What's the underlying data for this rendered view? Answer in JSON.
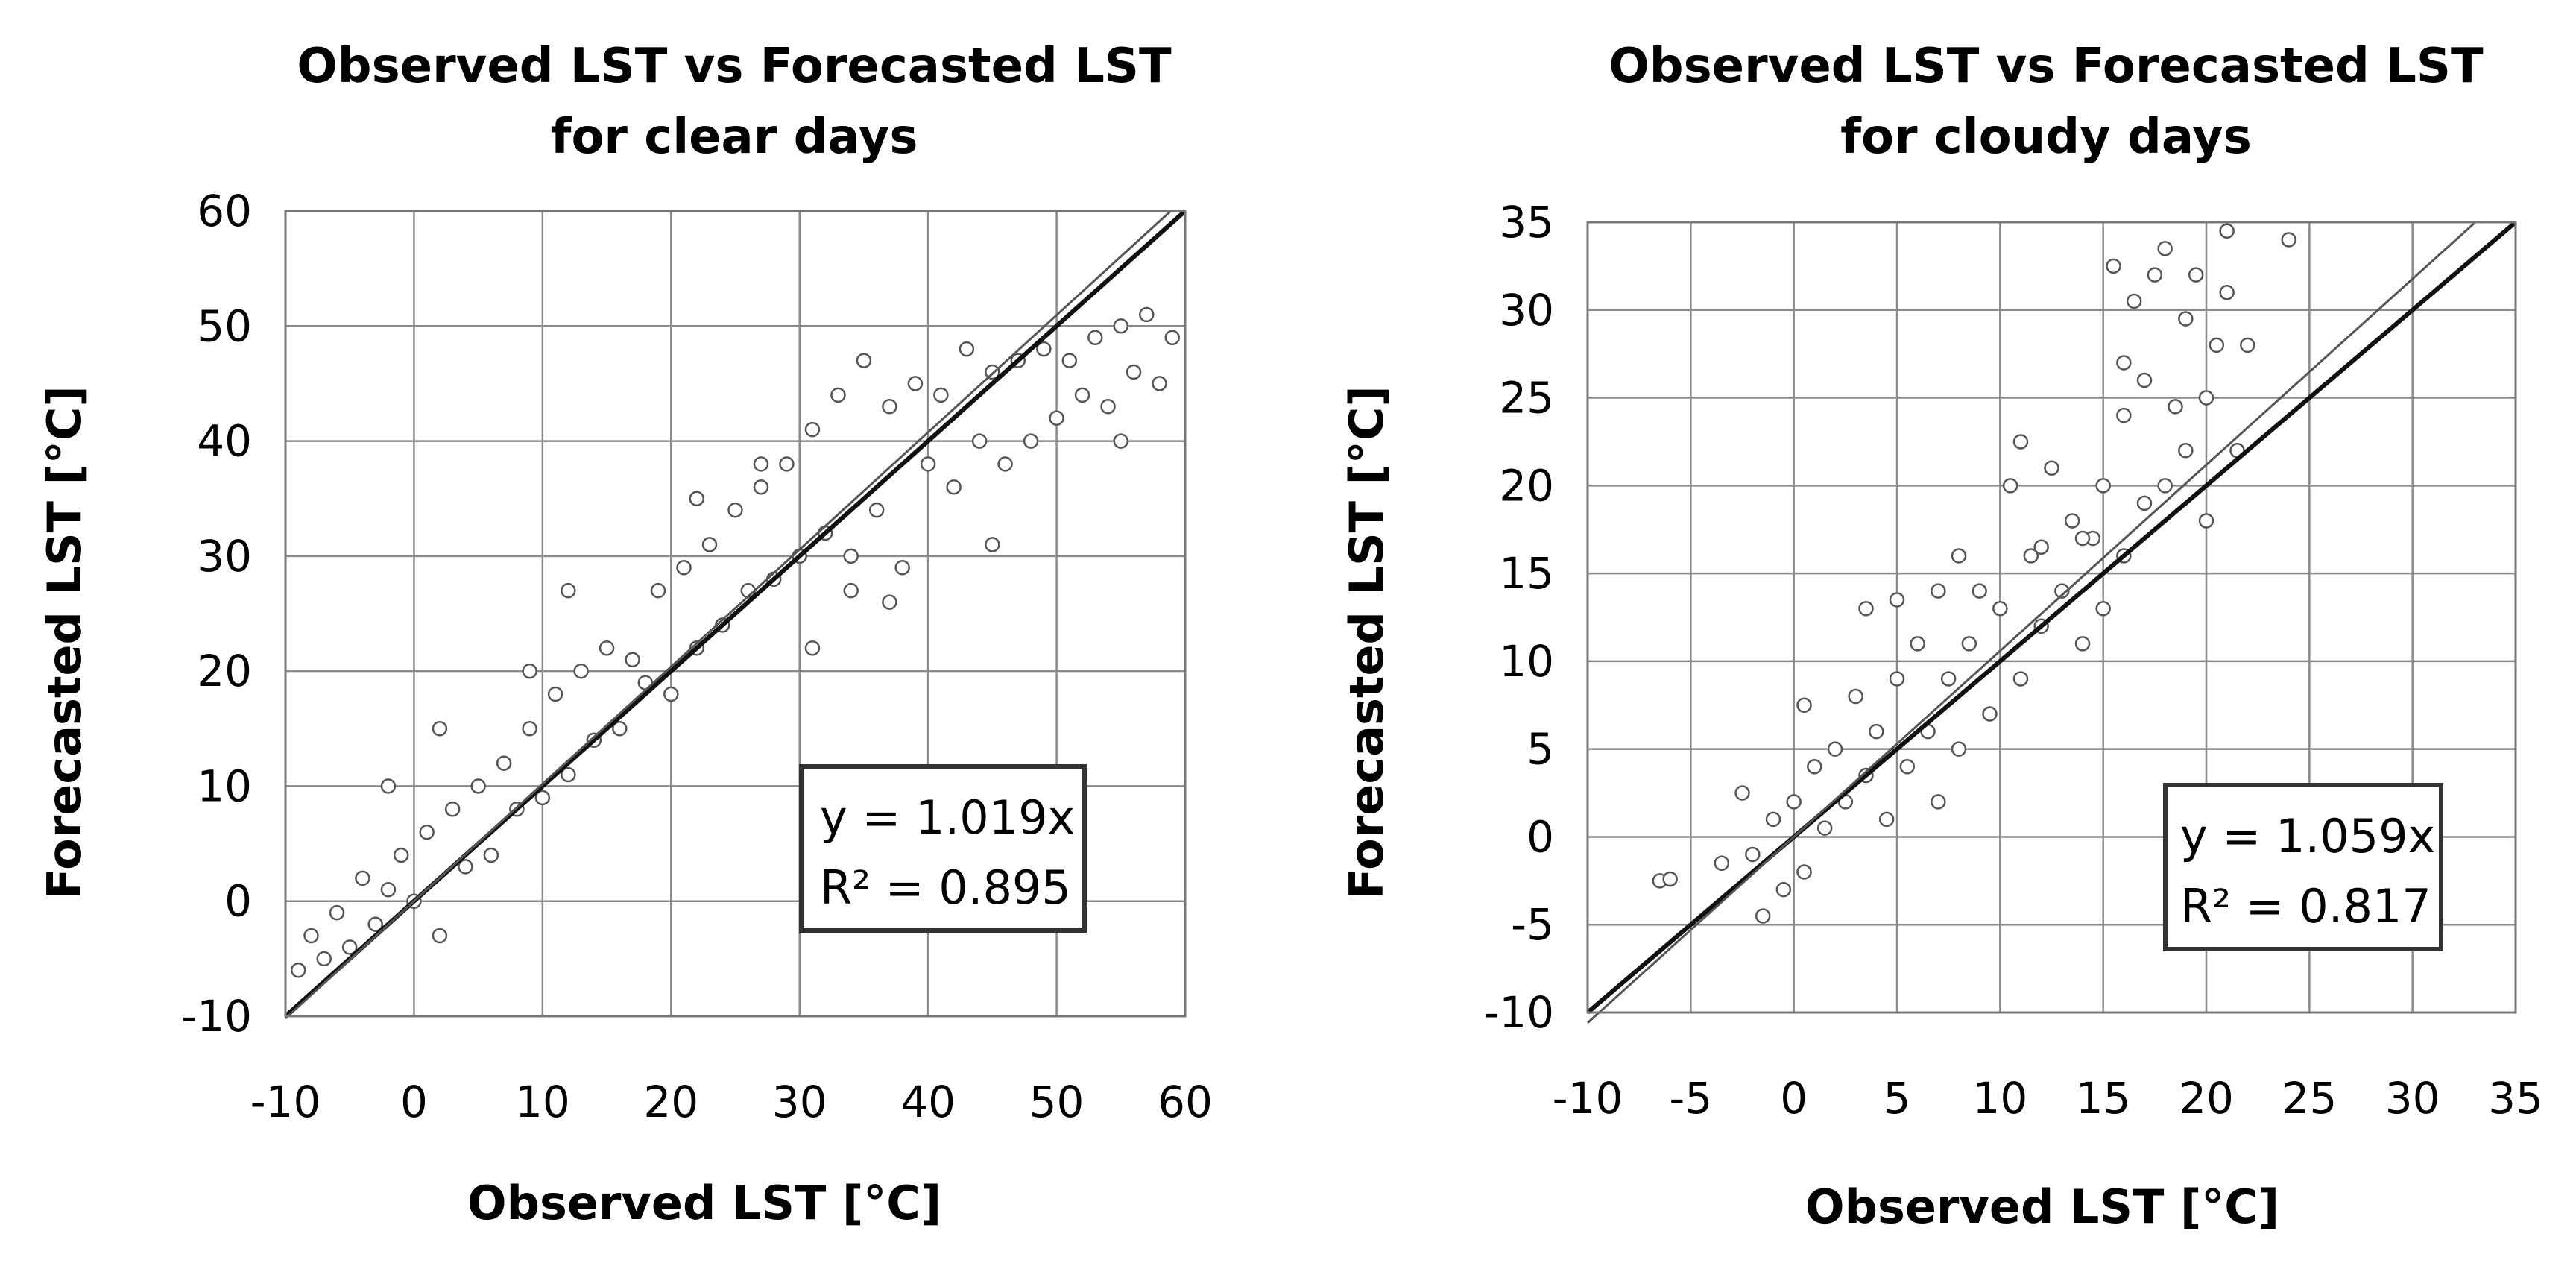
{
  "chart_data": [
    {
      "type": "scatter",
      "title_lines": [
        "Observed LST vs Forecasted LST",
        "for clear days"
      ],
      "xlabel": "Observed LST [°C]",
      "ylabel": "Forecasted LST [°C]",
      "xlim": [
        -10,
        60
      ],
      "ylim": [
        -10,
        60
      ],
      "xticks": [
        -10,
        0,
        10,
        20,
        30,
        40,
        50,
        60
      ],
      "yticks": [
        -10,
        0,
        10,
        20,
        30,
        40,
        50,
        60
      ],
      "grid": true,
      "trend": {
        "slope": 1.019,
        "equation": "y = 1.019x",
        "r2": "R² = 0.895"
      },
      "identity_line": true,
      "legend_position": "bottom-right",
      "scatter_spec": {
        "description": "dense cloud of observed vs forecasted points along y = x",
        "points": [
          [
            -9,
            -6
          ],
          [
            -8,
            -3
          ],
          [
            -7,
            -5
          ],
          [
            -6,
            -1
          ],
          [
            -5,
            -4
          ],
          [
            -4,
            2
          ],
          [
            -3,
            -2
          ],
          [
            -2,
            1
          ],
          [
            -1,
            4
          ],
          [
            0,
            0
          ],
          [
            1,
            6
          ],
          [
            2,
            -3
          ],
          [
            3,
            8
          ],
          [
            4,
            3
          ],
          [
            5,
            10
          ],
          [
            6,
            4
          ],
          [
            7,
            12
          ],
          [
            8,
            8
          ],
          [
            9,
            15
          ],
          [
            10,
            9
          ],
          [
            11,
            18
          ],
          [
            12,
            11
          ],
          [
            13,
            20
          ],
          [
            14,
            14
          ],
          [
            15,
            22
          ],
          [
            16,
            15
          ],
          [
            17,
            21
          ],
          [
            18,
            19
          ],
          [
            19,
            27
          ],
          [
            20,
            18
          ],
          [
            21,
            29
          ],
          [
            22,
            22
          ],
          [
            23,
            31
          ],
          [
            24,
            24
          ],
          [
            25,
            34
          ],
          [
            26,
            27
          ],
          [
            27,
            36
          ],
          [
            28,
            28
          ],
          [
            29,
            38
          ],
          [
            30,
            30
          ],
          [
            31,
            41
          ],
          [
            32,
            32
          ],
          [
            33,
            44
          ],
          [
            34,
            30
          ],
          [
            35,
            47
          ],
          [
            36,
            34
          ],
          [
            37,
            43
          ],
          [
            38,
            29
          ],
          [
            39,
            45
          ],
          [
            40,
            38
          ],
          [
            41,
            44
          ],
          [
            42,
            36
          ],
          [
            43,
            48
          ],
          [
            44,
            40
          ],
          [
            45,
            46
          ],
          [
            46,
            38
          ],
          [
            47,
            47
          ],
          [
            48,
            40
          ],
          [
            49,
            48
          ],
          [
            50,
            42
          ],
          [
            51,
            47
          ],
          [
            52,
            44
          ],
          [
            53,
            49
          ],
          [
            54,
            43
          ],
          [
            55,
            50
          ],
          [
            56,
            46
          ],
          [
            57,
            51
          ],
          [
            58,
            45
          ],
          [
            59,
            49
          ],
          [
            2,
            15
          ],
          [
            12,
            27
          ],
          [
            34,
            27
          ],
          [
            37,
            26
          ],
          [
            55,
            40
          ],
          [
            31,
            22
          ],
          [
            45,
            31
          ],
          [
            22,
            35
          ],
          [
            27,
            38
          ],
          [
            9,
            20
          ],
          [
            -2,
            10
          ]
        ]
      }
    },
    {
      "type": "scatter",
      "title_lines": [
        "Observed LST vs Forecasted LST",
        "for cloudy days"
      ],
      "xlabel": "Observed LST [°C]",
      "ylabel": "Forecasted LST [°C]",
      "xlim": [
        -10,
        35
      ],
      "ylim": [
        -10,
        35
      ],
      "xticks": [
        -10,
        -5,
        0,
        5,
        10,
        15,
        20,
        25,
        30,
        35
      ],
      "yticks": [
        -10,
        -5,
        0,
        5,
        10,
        15,
        20,
        25,
        30,
        35
      ],
      "grid": true,
      "trend": {
        "slope": 1.059,
        "equation": "y = 1.059x",
        "r2": "R² = 0.817"
      },
      "identity_line": true,
      "legend_position": "bottom-right",
      "scatter_spec": {
        "description": "cloud of observed vs forecasted points, wider spread above 15 °C",
        "points": [
          [
            -6.5,
            -2.5
          ],
          [
            -6,
            -2.4
          ],
          [
            -3.5,
            -1.5
          ],
          [
            -2.5,
            2.5
          ],
          [
            -2,
            -1
          ],
          [
            -1.5,
            -4.5
          ],
          [
            -1,
            1
          ],
          [
            -0.5,
            -3
          ],
          [
            0,
            2
          ],
          [
            0.5,
            -2
          ],
          [
            0.5,
            7.5
          ],
          [
            1,
            4
          ],
          [
            1.5,
            0.5
          ],
          [
            2,
            5
          ],
          [
            2.5,
            2
          ],
          [
            3,
            8
          ],
          [
            3.5,
            13
          ],
          [
            3.5,
            3.5
          ],
          [
            4,
            6
          ],
          [
            4.5,
            1
          ],
          [
            5,
            9
          ],
          [
            5,
            13.5
          ],
          [
            5.5,
            4
          ],
          [
            6,
            11
          ],
          [
            6.5,
            6
          ],
          [
            7,
            14
          ],
          [
            7,
            2
          ],
          [
            7.5,
            9
          ],
          [
            8,
            16
          ],
          [
            8,
            5
          ],
          [
            8.5,
            11
          ],
          [
            9,
            14
          ],
          [
            9.5,
            7
          ],
          [
            10,
            13
          ],
          [
            10.5,
            20
          ],
          [
            11,
            9
          ],
          [
            11,
            22.5
          ],
          [
            11.5,
            16
          ],
          [
            12,
            12
          ],
          [
            12.5,
            21
          ],
          [
            13,
            14
          ],
          [
            13.5,
            18
          ],
          [
            14,
            11
          ],
          [
            14.5,
            17
          ],
          [
            15,
            20
          ],
          [
            15,
            13
          ],
          [
            15.5,
            32.5
          ],
          [
            16,
            24
          ],
          [
            16,
            16
          ],
          [
            16.5,
            30.5
          ],
          [
            17,
            19
          ],
          [
            17,
            26
          ],
          [
            17.5,
            32
          ],
          [
            18,
            20
          ],
          [
            18.5,
            24.5
          ],
          [
            19,
            22
          ],
          [
            19,
            29.5
          ],
          [
            19.5,
            32
          ],
          [
            20,
            25
          ],
          [
            20,
            18
          ],
          [
            20.5,
            28
          ],
          [
            21,
            31
          ],
          [
            21,
            34.5
          ],
          [
            21.5,
            22
          ],
          [
            22,
            28
          ],
          [
            24,
            34
          ],
          [
            18,
            33.5
          ],
          [
            16,
            27
          ],
          [
            14,
            17
          ],
          [
            12,
            16.5
          ]
        ]
      }
    }
  ]
}
